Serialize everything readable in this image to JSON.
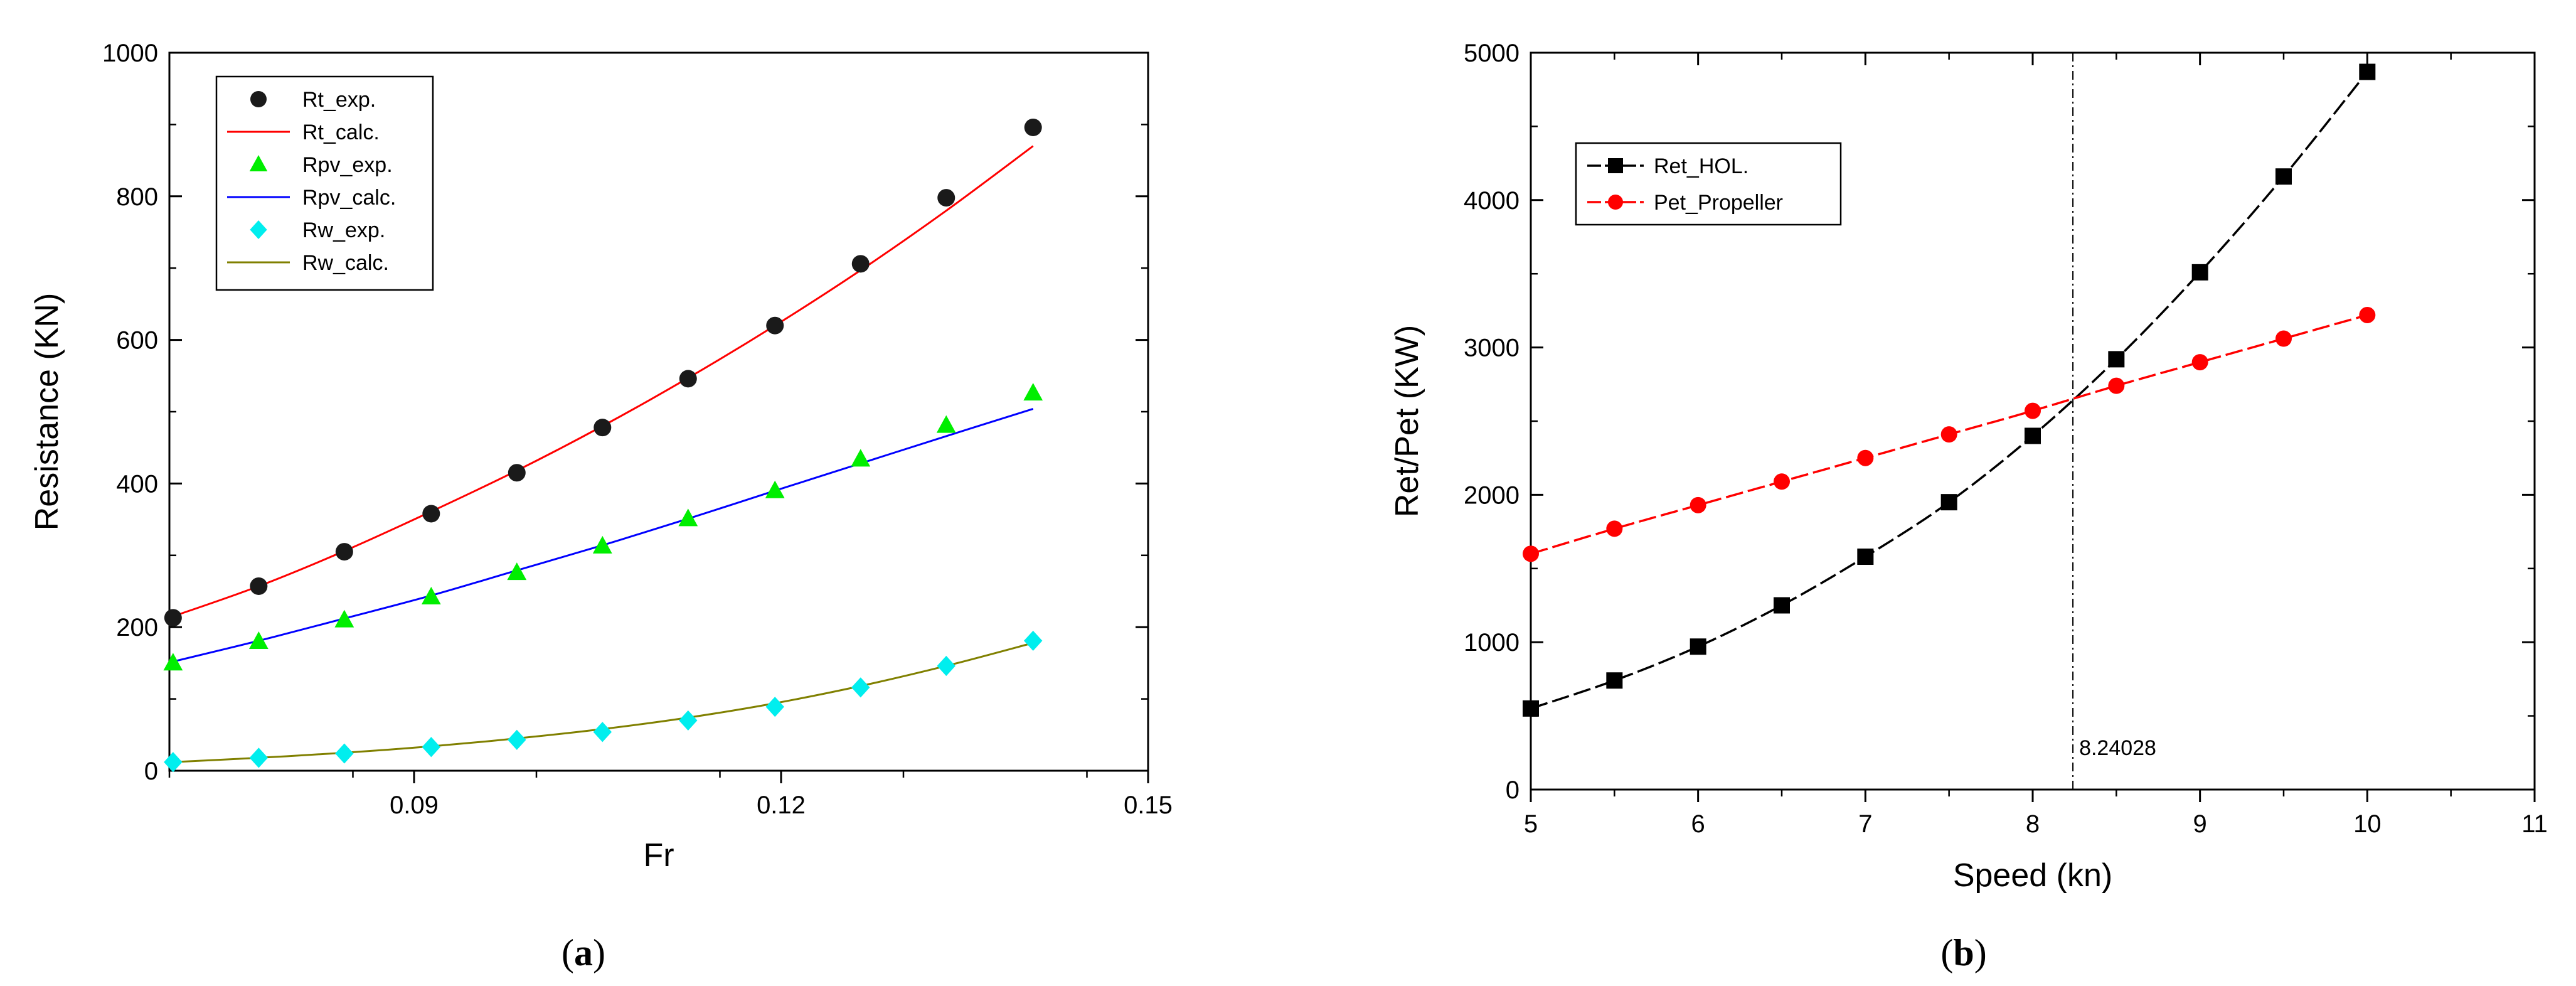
{
  "chart_data": [
    {
      "panel": "a",
      "type": "scatter",
      "caption": {
        "open": "(",
        "letter": "a",
        "close": ")"
      },
      "xlabel": "Fr",
      "ylabel": "Resistance (KN)",
      "xlim": [
        0.07,
        0.15
      ],
      "ylim": [
        0,
        1000
      ],
      "xticks": [
        0.09,
        0.12,
        0.15
      ],
      "xtick_labels": [
        "0.09",
        "0.12",
        "0.15"
      ],
      "yticks": [
        0,
        200,
        400,
        600,
        800,
        1000
      ],
      "ytick_labels": [
        "0",
        "200",
        "400",
        "600",
        "800",
        "1000"
      ],
      "legend_position": "top-left",
      "series": [
        {
          "name": "Rt_exp.",
          "kind": "points",
          "marker": "circle",
          "color": "#1a1a1a",
          "x": [
            0.0703,
            0.0773,
            0.0843,
            0.0914,
            0.0984,
            0.1054,
            0.1124,
            0.1195,
            0.1265,
            0.1335,
            0.1406
          ],
          "y": [
            213,
            257,
            305,
            358,
            415,
            478,
            546,
            620,
            706,
            798,
            896
          ]
        },
        {
          "name": "Rt_calc.",
          "kind": "line",
          "color": "#ff0000",
          "x": [
            0.0703,
            0.0773,
            0.0843,
            0.0914,
            0.0984,
            0.1054,
            0.1124,
            0.1195,
            0.1265,
            0.1335,
            0.1406
          ],
          "y": [
            215,
            257,
            306,
            361,
            418,
            480,
            547,
            620,
            697,
            780,
            870
          ]
        },
        {
          "name": "Rpv_exp.",
          "kind": "points",
          "marker": "triangle",
          "color": "#00ee00",
          "x": [
            0.0703,
            0.0773,
            0.0843,
            0.0914,
            0.0984,
            0.1054,
            0.1124,
            0.1195,
            0.1265,
            0.1335,
            0.1406
          ],
          "y": [
            150,
            180,
            210,
            242,
            276,
            313,
            351,
            390,
            434,
            481,
            526
          ]
        },
        {
          "name": "Rpv_calc.",
          "kind": "line",
          "color": "#0000ff",
          "x": [
            0.0703,
            0.0773,
            0.0843,
            0.0914,
            0.0984,
            0.1054,
            0.1124,
            0.1195,
            0.1265,
            0.1335,
            0.1406
          ],
          "y": [
            152,
            181,
            212,
            244,
            279,
            314,
            351,
            390,
            428,
            466,
            504
          ]
        },
        {
          "name": "Rw_exp.",
          "kind": "points",
          "marker": "diamond",
          "color": "#00eeee",
          "x": [
            0.0703,
            0.0773,
            0.0843,
            0.0914,
            0.0984,
            0.1054,
            0.1124,
            0.1195,
            0.1265,
            0.1335,
            0.1406
          ],
          "y": [
            12,
            18,
            24,
            33,
            43,
            54,
            70,
            89,
            116,
            146,
            181
          ]
        },
        {
          "name": "Rw_calc.",
          "kind": "line",
          "color": "#808000",
          "x": [
            0.0703,
            0.0773,
            0.0843,
            0.0914,
            0.0984,
            0.1054,
            0.1124,
            0.1195,
            0.1265,
            0.1335,
            0.1406
          ],
          "y": [
            12,
            18,
            25,
            34,
            45,
            58,
            74,
            94,
            118,
            146,
            178
          ]
        }
      ]
    },
    {
      "panel": "b",
      "type": "line",
      "caption": {
        "open": "(",
        "letter": "b",
        "close": ")"
      },
      "xlabel": "Speed (kn)",
      "ylabel": "Ret/Pet (KW)",
      "xlim": [
        5,
        11
      ],
      "ylim": [
        0,
        5000
      ],
      "xticks": [
        5,
        6,
        7,
        8,
        9,
        10,
        11
      ],
      "xtick_labels": [
        "5",
        "6",
        "7",
        "8",
        "9",
        "10",
        "11"
      ],
      "yticks": [
        0,
        1000,
        2000,
        3000,
        4000,
        5000
      ],
      "ytick_labels": [
        "0",
        "1000",
        "2000",
        "3000",
        "4000",
        "5000"
      ],
      "legend_position": "top-left",
      "annotation": {
        "x": 8.24028,
        "label": "8.24028"
      },
      "series": [
        {
          "name": "Ret_HOL.",
          "marker": "square",
          "color": "#000000",
          "x": [
            5,
            5.5,
            6,
            6.5,
            7,
            7.5,
            8,
            8.5,
            9,
            9.5,
            10
          ],
          "y": [
            550,
            740,
            970,
            1250,
            1580,
            1950,
            2400,
            2920,
            3510,
            4160,
            4870
          ]
        },
        {
          "name": "Pet_Propeller",
          "marker": "circle",
          "color": "#ff0000",
          "x": [
            5,
            5.5,
            6,
            6.5,
            7,
            7.5,
            8,
            8.5,
            9,
            9.5,
            10
          ],
          "y": [
            1600,
            1770,
            1930,
            2090,
            2250,
            2410,
            2570,
            2740,
            2900,
            3060,
            3220
          ]
        }
      ]
    }
  ]
}
